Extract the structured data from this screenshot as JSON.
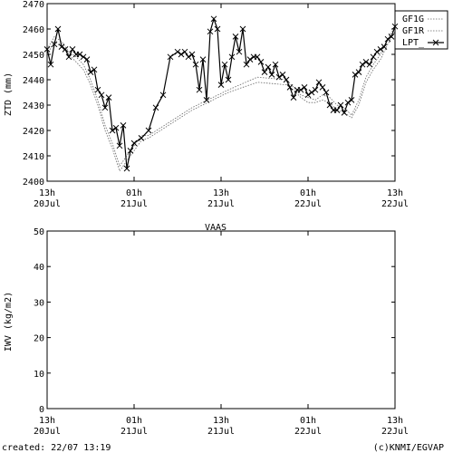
{
  "footer": {
    "created": "created: 22/07 13:19",
    "credit": "(c)KNMI/EGVAP"
  },
  "chart_data": [
    {
      "type": "line",
      "title": "",
      "ylabel": "ZTD (mm)",
      "xlabel": "",
      "ylim": [
        2400,
        2470
      ],
      "yticks": [
        2400,
        2410,
        2420,
        2430,
        2440,
        2450,
        2460,
        2470
      ],
      "xlim": [
        0,
        48
      ],
      "xticks": [
        {
          "x": 0,
          "top": "13h",
          "bottom": "20Jul"
        },
        {
          "x": 12,
          "top": "01h",
          "bottom": "21Jul"
        },
        {
          "x": 24,
          "top": "13h",
          "bottom": "21Jul"
        },
        {
          "x": 36,
          "top": "01h",
          "bottom": "22Jul"
        },
        {
          "x": 48,
          "top": "13h",
          "bottom": "22Jul"
        }
      ],
      "legend": "top-right",
      "series": [
        {
          "name": "GF1G",
          "style": "dotted",
          "x": [
            0,
            1,
            2,
            3,
            4,
            5,
            6,
            7,
            8,
            9,
            10,
            11,
            12,
            13,
            14,
            20,
            25,
            29,
            33,
            34,
            35,
            36,
            37,
            38,
            39,
            40,
            41,
            42,
            43,
            44,
            45,
            46,
            47,
            48
          ],
          "y": [
            2452,
            2457,
            2455,
            2451,
            2449,
            2446,
            2440,
            2432,
            2422,
            2415,
            2406,
            2410,
            2414,
            2418,
            2418,
            2429,
            2436,
            2441,
            2440,
            2437,
            2434,
            2433,
            2432,
            2434,
            2433,
            2430,
            2429,
            2426,
            2432,
            2441,
            2446,
            2450,
            2456,
            2461
          ]
        },
        {
          "name": "GF1R",
          "style": "dotted",
          "x": [
            0,
            1,
            2,
            3,
            4,
            5,
            6,
            7,
            8,
            9,
            10,
            11,
            12,
            13,
            14,
            20,
            25,
            29,
            33,
            34,
            35,
            36,
            37,
            38,
            39,
            40,
            41,
            42,
            43,
            44,
            45,
            46,
            47,
            48
          ],
          "y": [
            2450,
            2455,
            2453,
            2450,
            2447,
            2444,
            2438,
            2430,
            2420,
            2413,
            2404,
            2408,
            2412,
            2416,
            2417,
            2428,
            2435,
            2439,
            2438,
            2436,
            2433,
            2431,
            2431,
            2432,
            2431,
            2428,
            2427,
            2425,
            2430,
            2439,
            2444,
            2448,
            2454,
            2459
          ]
        },
        {
          "name": "LPT_",
          "style": "solid",
          "x": [
            0,
            0.5,
            1,
            1.5,
            2,
            2.5,
            3,
            3.5,
            4,
            4.5,
            5,
            5.5,
            6,
            6.5,
            7,
            7.5,
            8,
            8.5,
            9,
            9.5,
            10,
            10.5,
            11,
            11.5,
            12,
            13,
            14,
            15,
            16,
            17,
            18,
            18.5,
            19,
            19.5,
            20,
            20.5,
            21,
            21.5,
            22,
            22.5,
            23,
            23.5,
            24,
            24.5,
            25,
            25.5,
            26,
            26.5,
            27,
            27.5,
            28,
            28.5,
            29,
            29.5,
            30,
            30.5,
            31,
            31.5,
            32,
            32.5,
            33,
            33.5,
            34,
            34.5,
            35,
            35.5,
            36,
            36.5,
            37,
            37.5,
            38,
            38.5,
            39,
            39.5,
            40,
            40.5,
            41,
            41.5,
            42,
            42.5,
            43,
            43.5,
            44,
            44.5,
            45,
            45.5,
            46,
            46.5,
            47,
            47.5,
            48
          ],
          "y": [
            2452,
            2446,
            2454,
            2460,
            2453,
            2452,
            2449,
            2452,
            2450,
            2450,
            2449,
            2448,
            2443,
            2444,
            2436,
            2434,
            2429,
            2433,
            2420,
            2421,
            2414,
            2422,
            2405,
            2412,
            2415,
            2417,
            2420,
            2429,
            2434,
            2449,
            2451,
            2450,
            2451,
            2449,
            2450,
            2446,
            2436,
            2448,
            2432,
            2459,
            2464,
            2460,
            2438,
            2446,
            2440,
            2449,
            2457,
            2451,
            2460,
            2446,
            2448,
            2449,
            2449,
            2447,
            2443,
            2445,
            2442,
            2446,
            2441,
            2442,
            2440,
            2437,
            2433,
            2436,
            2436,
            2437,
            2434,
            2435,
            2436,
            2439,
            2437,
            2435,
            2430,
            2428,
            2428,
            2430,
            2427,
            2431,
            2432,
            2442,
            2443,
            2446,
            2447,
            2446,
            2449,
            2451,
            2452,
            2453,
            2456,
            2457,
            2461
          ]
        }
      ]
    },
    {
      "type": "line",
      "title": "VAAS",
      "ylabel": "IWV (kg/m2)",
      "xlabel": "",
      "ylim": [
        0,
        50
      ],
      "yticks": [
        0,
        10,
        20,
        30,
        40,
        50
      ],
      "xlim": [
        0,
        48
      ],
      "xticks": [
        {
          "x": 0,
          "top": "13h",
          "bottom": "20Jul"
        },
        {
          "x": 12,
          "top": "01h",
          "bottom": "21Jul"
        },
        {
          "x": 24,
          "top": "13h",
          "bottom": "21Jul"
        },
        {
          "x": 36,
          "top": "01h",
          "bottom": "22Jul"
        },
        {
          "x": 48,
          "top": "13h",
          "bottom": "22Jul"
        }
      ],
      "series": []
    }
  ]
}
